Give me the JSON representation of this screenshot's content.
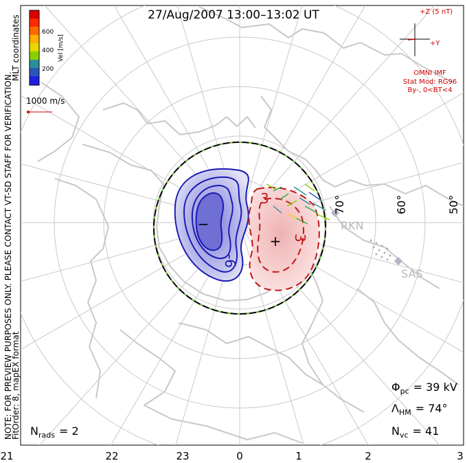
{
  "title": "27/Aug/2007 13:00–13:02 UT",
  "side_note_1": "NOTE: FOR PREVIEW PURPOSES ONLY. PLEASE CONTACT VT-SD STAFF FOR VERIFICATION.",
  "side_note_2": "FitOrder: 8,  mapEX format",
  "side_note_3": "MLT coordinates",
  "colorbar": {
    "label": "Vel [m/s]",
    "ticks": [
      "600",
      "400",
      "200"
    ],
    "colors": [
      "#dd0000",
      "#ff6a00",
      "#ffb000",
      "#e6d800",
      "#8ccf00",
      "#22b24c",
      "#2a8f9a",
      "#2a56b8",
      "#1f1fe0"
    ]
  },
  "scale_label": "1000 m/s",
  "imf": {
    "label_z": "+Z (5 nT)",
    "label_y": "+Y",
    "line1": "OMNI IMF",
    "line2": "Stat Mod: RG96",
    "line3": "By-, 0<BT<4",
    "color": "#cc0000"
  },
  "lat_labels": [
    "70°",
    "60°",
    "50°"
  ],
  "stations": [
    "RKN",
    "SAS"
  ],
  "contours": {
    "neg_label": "-6",
    "pos_label_1": "3",
    "pos_label_2": "3",
    "neg_sign": "−",
    "pos_sign": "+"
  },
  "stats": {
    "phi_sym": "Φ",
    "phi_sub": "pc",
    "phi_val": "= 39 kV",
    "lambda_sym": "Λ",
    "lambda_sub": "HM",
    "lambda_val": "= 74°",
    "nvc_sym": "N",
    "nvc_sub": "vc",
    "nvc_val": "= 41",
    "nrads_sym": "N",
    "nrads_sub": "rads",
    "nrads_val": "= 2"
  },
  "mlt_labels": [
    "21",
    "22",
    "23",
    "0",
    "1",
    "2",
    "3"
  ],
  "colors": {
    "map": "#c8c8c8",
    "blue": "#1a1ab4",
    "red": "#c01818",
    "neg_fill": "#c9c9ee",
    "pos_fill": "#f2c6c6"
  }
}
